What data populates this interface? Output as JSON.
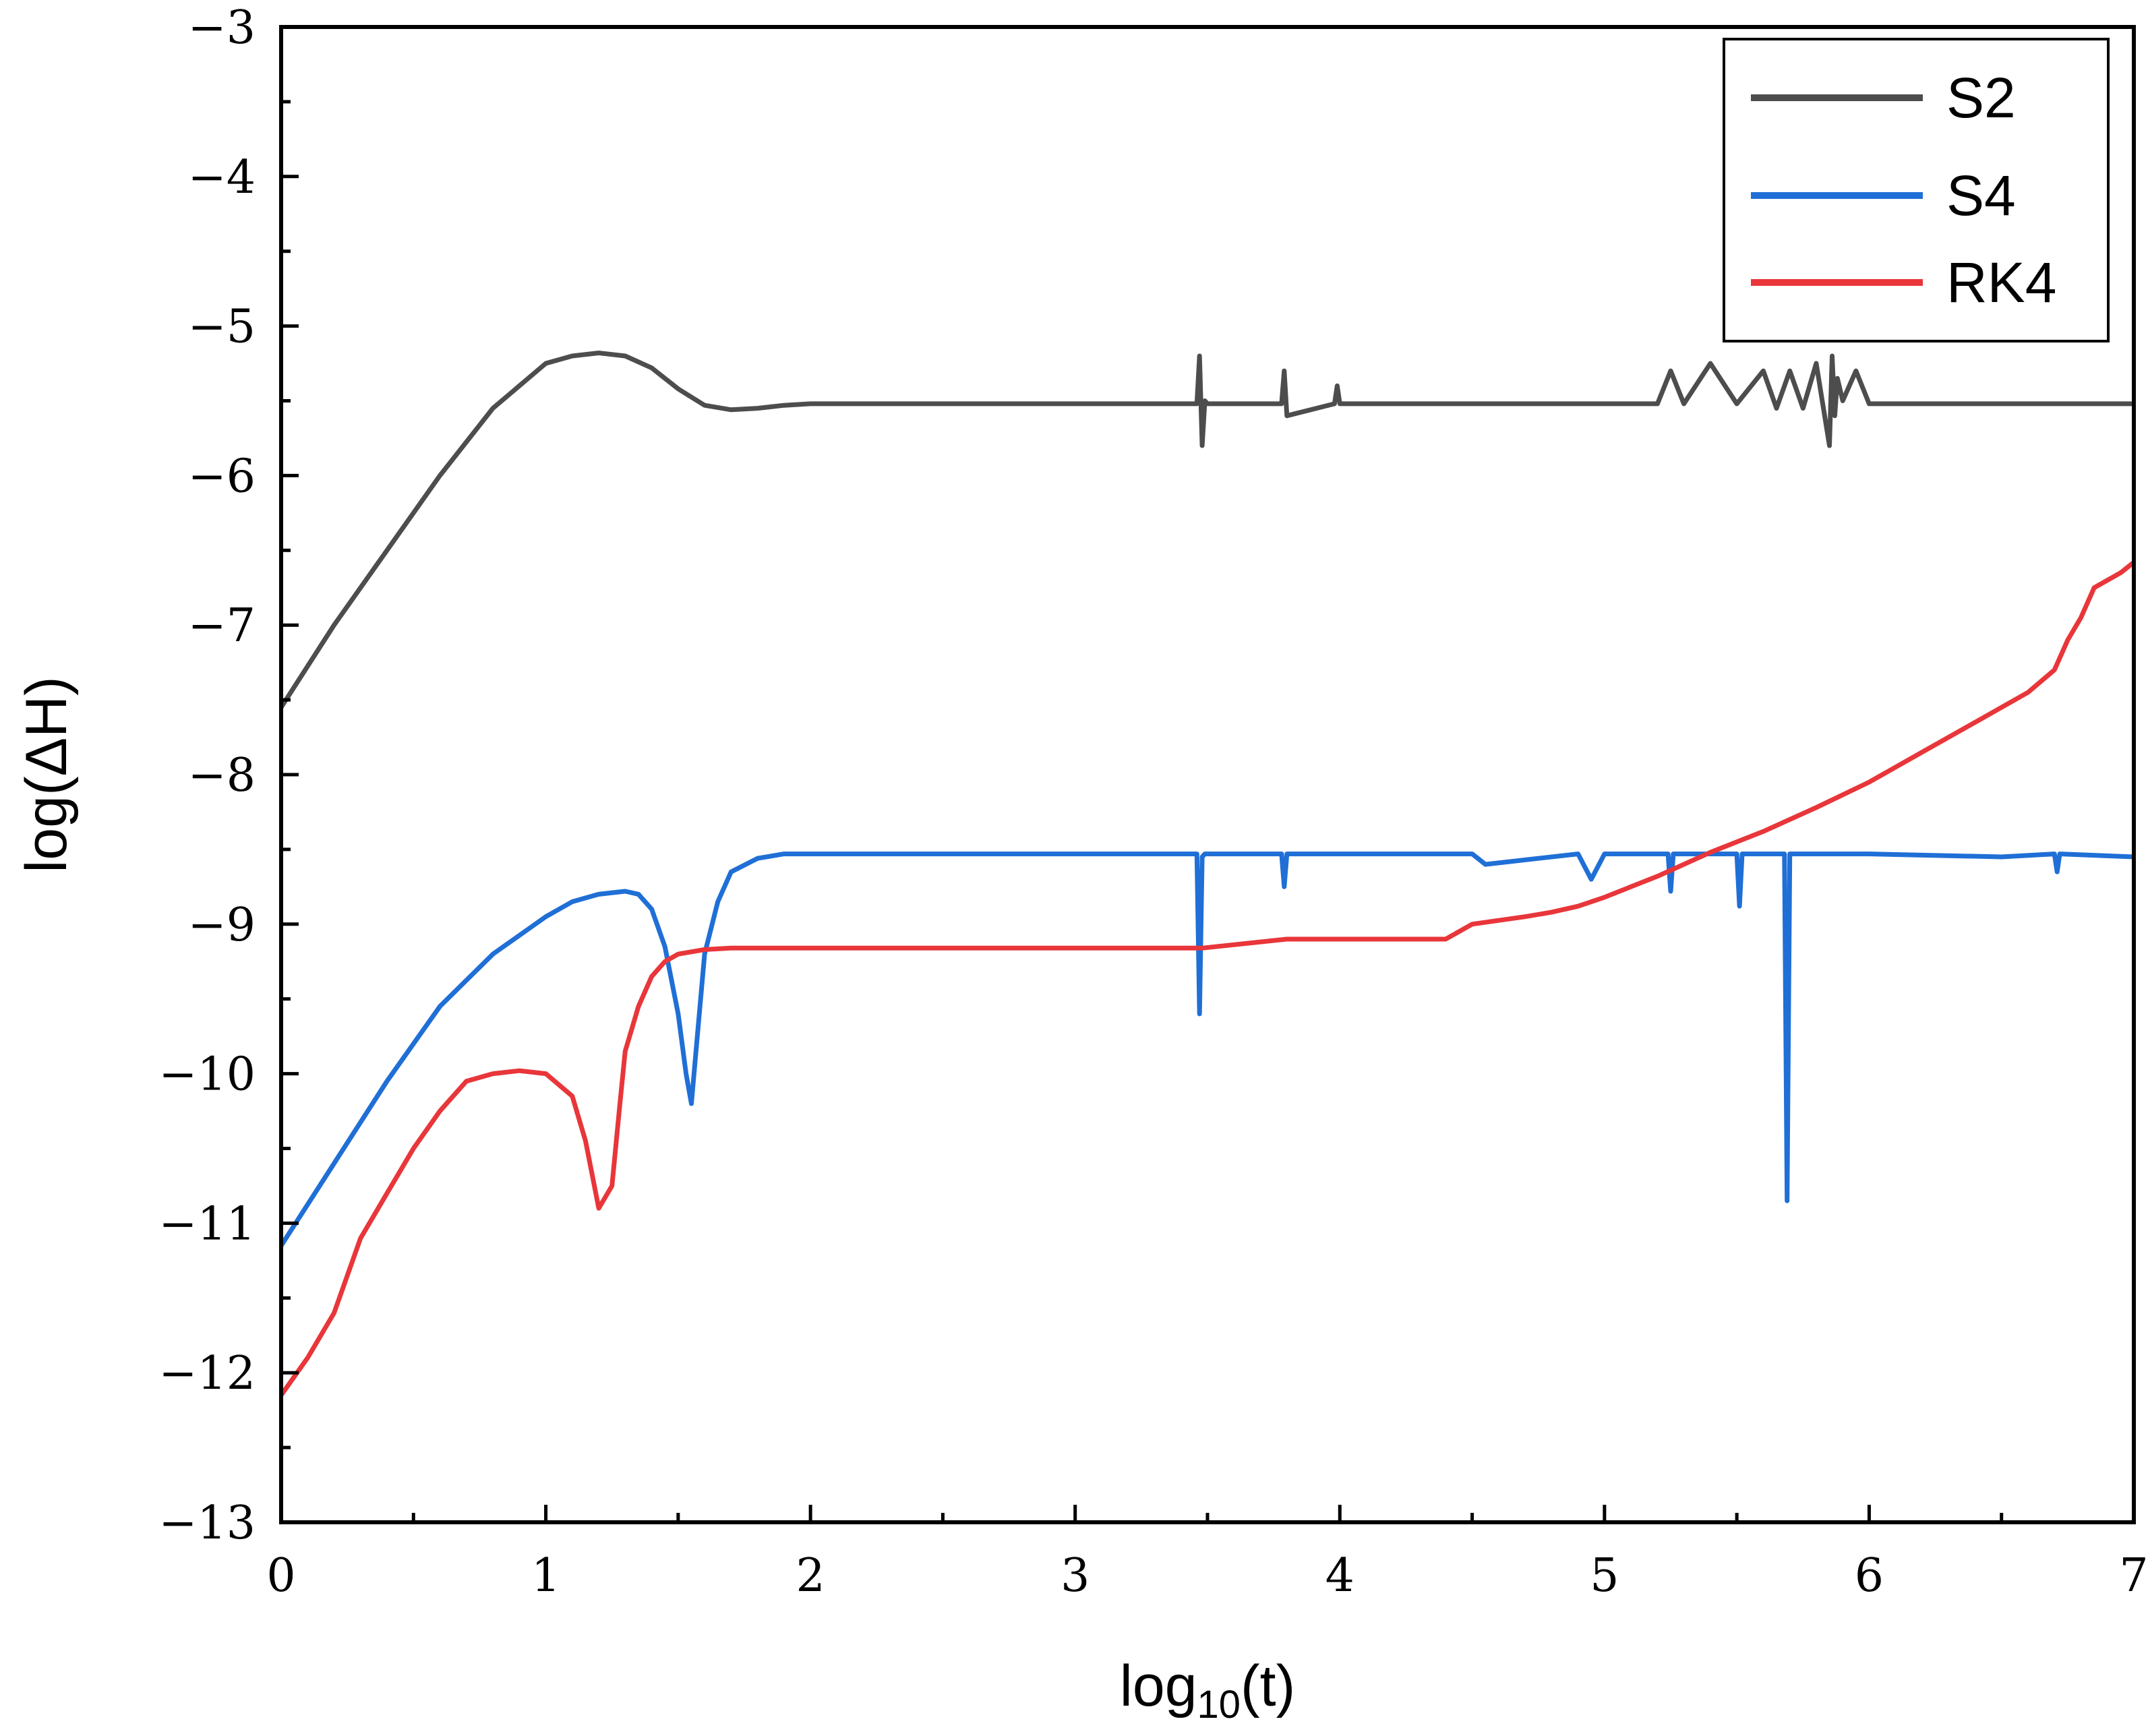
{
  "chart_data": {
    "type": "line",
    "title": "",
    "xlabel_base": "log",
    "xlabel_sub": "10",
    "xlabel_rest": "(t)",
    "ylabel": "log(ΔH)",
    "xlim": [
      0,
      7
    ],
    "ylim": [
      -13,
      -3
    ],
    "xticks": [
      0,
      1,
      2,
      3,
      4,
      5,
      6,
      7
    ],
    "xtick_labels": [
      "0",
      "1",
      "2",
      "3",
      "4",
      "5",
      "6",
      "7"
    ],
    "yticks": [
      -13,
      -12,
      -11,
      -10,
      -9,
      -8,
      -7,
      -6,
      -5,
      -4,
      -3
    ],
    "ytick_labels": [
      "−13",
      "−12",
      "−11",
      "−10",
      "−9",
      "−8",
      "−7",
      "−6",
      "−5",
      "−4",
      "−3"
    ],
    "grid": false,
    "legend_position": "top-right",
    "series": [
      {
        "name": "S2",
        "color": "#4d4d4d",
        "x": [
          0,
          0.2,
          0.4,
          0.6,
          0.8,
          1.0,
          1.1,
          1.2,
          1.3,
          1.4,
          1.5,
          1.6,
          1.7,
          1.8,
          1.9,
          2.0,
          2.1,
          3.46,
          3.47,
          3.48,
          3.49,
          3.5,
          3.78,
          3.79,
          3.8,
          3.98,
          3.99,
          4.0,
          4.55,
          4.9,
          5.2,
          5.25,
          5.3,
          5.4,
          5.5,
          5.6,
          5.65,
          5.7,
          5.75,
          5.8,
          5.85,
          5.86,
          5.87,
          5.88,
          5.9,
          5.95,
          6.0,
          6.2,
          6.5,
          6.8,
          7.0
        ],
        "y": [
          -7.55,
          -7.0,
          -6.5,
          -6.0,
          -5.55,
          -5.25,
          -5.2,
          -5.18,
          -5.2,
          -5.28,
          -5.42,
          -5.53,
          -5.56,
          -5.55,
          -5.53,
          -5.52,
          -5.52,
          -5.52,
          -5.2,
          -5.8,
          -5.5,
          -5.52,
          -5.52,
          -5.3,
          -5.6,
          -5.52,
          -5.4,
          -5.52,
          -5.52,
          -5.52,
          -5.52,
          -5.3,
          -5.52,
          -5.25,
          -5.52,
          -5.3,
          -5.55,
          -5.3,
          -5.55,
          -5.25,
          -5.8,
          -5.2,
          -5.6,
          -5.35,
          -5.5,
          -5.3,
          -5.52,
          -5.52,
          -5.52,
          -5.52,
          -5.52
        ]
      },
      {
        "name": "S4",
        "color": "#1f6fd6",
        "x": [
          0,
          0.2,
          0.4,
          0.6,
          0.8,
          1.0,
          1.1,
          1.2,
          1.3,
          1.35,
          1.4,
          1.45,
          1.5,
          1.53,
          1.55,
          1.57,
          1.6,
          1.65,
          1.7,
          1.8,
          1.9,
          2.0,
          3.46,
          3.47,
          3.48,
          3.49,
          3.78,
          3.79,
          3.8,
          4.5,
          4.55,
          4.9,
          4.95,
          5.0,
          5.24,
          5.25,
          5.26,
          5.5,
          5.51,
          5.52,
          5.68,
          5.69,
          5.7,
          6.0,
          6.5,
          6.7,
          6.71,
          6.72,
          7.0
        ],
        "y": [
          -11.15,
          -10.6,
          -10.05,
          -9.55,
          -9.2,
          -8.95,
          -8.85,
          -8.8,
          -8.78,
          -8.8,
          -8.9,
          -9.15,
          -9.6,
          -10.0,
          -10.2,
          -9.8,
          -9.2,
          -8.85,
          -8.65,
          -8.56,
          -8.53,
          -8.53,
          -8.53,
          -9.6,
          -8.55,
          -8.53,
          -8.53,
          -8.75,
          -8.53,
          -8.53,
          -8.6,
          -8.53,
          -8.7,
          -8.53,
          -8.53,
          -8.78,
          -8.53,
          -8.53,
          -8.88,
          -8.53,
          -8.53,
          -10.85,
          -8.53,
          -8.53,
          -8.55,
          -8.53,
          -8.65,
          -8.53,
          -8.55
        ]
      },
      {
        "name": "RK4",
        "color": "#e8363a",
        "x": [
          0,
          0.1,
          0.2,
          0.3,
          0.4,
          0.5,
          0.6,
          0.7,
          0.8,
          0.9,
          1.0,
          1.1,
          1.15,
          1.2,
          1.25,
          1.28,
          1.3,
          1.35,
          1.4,
          1.45,
          1.5,
          1.6,
          1.7,
          1.8,
          2.0,
          3.0,
          3.48,
          3.8,
          4.0,
          4.4,
          4.45,
          4.5,
          4.7,
          4.8,
          4.9,
          5.0,
          5.1,
          5.2,
          5.3,
          5.4,
          5.5,
          5.6,
          5.8,
          6.0,
          6.2,
          6.4,
          6.6,
          6.7,
          6.75,
          6.8,
          6.85,
          6.9,
          6.95,
          7.0
        ],
        "y": [
          -12.15,
          -11.9,
          -11.6,
          -11.1,
          -10.8,
          -10.5,
          -10.25,
          -10.05,
          -10.0,
          -9.98,
          -10.0,
          -10.15,
          -10.45,
          -10.9,
          -10.75,
          -10.2,
          -9.85,
          -9.55,
          -9.35,
          -9.25,
          -9.2,
          -9.17,
          -9.16,
          -9.16,
          -9.16,
          -9.16,
          -9.16,
          -9.1,
          -9.1,
          -9.1,
          -9.05,
          -9.0,
          -8.95,
          -8.92,
          -8.88,
          -8.82,
          -8.75,
          -8.68,
          -8.6,
          -8.52,
          -8.45,
          -8.38,
          -8.22,
          -8.05,
          -7.85,
          -7.65,
          -7.45,
          -7.3,
          -7.1,
          -6.95,
          -6.75,
          -6.7,
          -6.65,
          -6.58
        ]
      }
    ]
  }
}
